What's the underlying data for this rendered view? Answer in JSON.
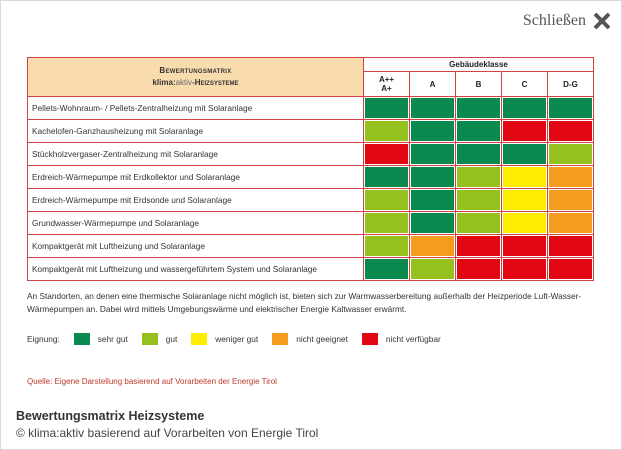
{
  "dialog": {
    "close_label": "Schließen"
  },
  "matrix": {
    "header_line1": "Bewertungsmatrix",
    "header_line2_brand_bold": "klima:",
    "header_line2_brand_light": "aktiv",
    "header_line2_rest": "-Heizsysteme",
    "class_header": "Gebäudeklasse",
    "columns": [
      "A++\nA+",
      "A",
      "B",
      "C",
      "D-G"
    ],
    "rows": [
      {
        "label": "Pellets-Wohnraum- / Pellets-Zentralheizung mit Solaranlage",
        "ratings": [
          "sehr_gut",
          "sehr_gut",
          "sehr_gut",
          "sehr_gut",
          "sehr_gut"
        ]
      },
      {
        "label": "Kachelofen-Ganzhausheizung mit Solaranlage",
        "ratings": [
          "gut",
          "sehr_gut",
          "sehr_gut",
          "nicht_verfuegbar",
          "nicht_verfuegbar"
        ]
      },
      {
        "label": "Stückholzvergaser-Zentralheizung mit Solaranlage",
        "ratings": [
          "nicht_verfuegbar",
          "sehr_gut",
          "sehr_gut",
          "sehr_gut",
          "gut"
        ]
      },
      {
        "label": "Erdreich-Wärmepumpe mit Erdkollektor und Solaranlage",
        "ratings": [
          "sehr_gut",
          "sehr_gut",
          "gut",
          "weniger_gut",
          "nicht_geeignet"
        ]
      },
      {
        "label": "Erdreich-Wärmepumpe mit Erdsonde und Solaranlage",
        "ratings": [
          "gut",
          "sehr_gut",
          "gut",
          "weniger_gut",
          "nicht_geeignet"
        ]
      },
      {
        "label": "Grundwasser-Wärmepumpe und Solaranlage",
        "ratings": [
          "gut",
          "sehr_gut",
          "gut",
          "weniger_gut",
          "nicht_geeignet"
        ]
      },
      {
        "label": "Kompaktgerät mit Luftheizung und Solaranlage",
        "ratings": [
          "gut",
          "nicht_geeignet",
          "nicht_verfuegbar",
          "nicht_verfuegbar",
          "nicht_verfuegbar"
        ]
      },
      {
        "label": "Kompaktgerät mit Luftheizung und wassergeführtem System und Solaranlage",
        "ratings": [
          "sehr_gut",
          "gut",
          "nicht_verfuegbar",
          "nicht_verfuegbar",
          "nicht_verfuegbar"
        ]
      }
    ]
  },
  "note": "An Standorten, an denen eine thermische Solaranlage nicht möglich ist, bieten sich zur Warmwasserbereitung außerhalb der Heizperiode Luft-Wasser-Wärmepumpen an. Dabei wird mittels Umgebungswärme und elektrischer Energie Kaltwasser erwärmt.",
  "legend": {
    "title": "Eignung:",
    "items": [
      {
        "key": "sehr_gut",
        "label": "sehr gut",
        "color": "#0a8a4e"
      },
      {
        "key": "gut",
        "label": "gut",
        "color": "#95c11f"
      },
      {
        "key": "weniger_gut",
        "label": "weniger gut",
        "color": "#ffed00"
      },
      {
        "key": "nicht_geeignet",
        "label": "nicht geeignet",
        "color": "#f39c1d"
      },
      {
        "key": "nicht_verfuegbar",
        "label": "nicht verfügbar",
        "color": "#e30613"
      }
    ]
  },
  "source": "Quelle: Eigene Darstellung basierend auf Vorarbeiten der Energie Tirol",
  "caption": {
    "title": "Bewertungsmatrix Heizsysteme",
    "subtitle": "© klima:aktiv basierend auf Vorarbeiten von Energie Tirol"
  }
}
